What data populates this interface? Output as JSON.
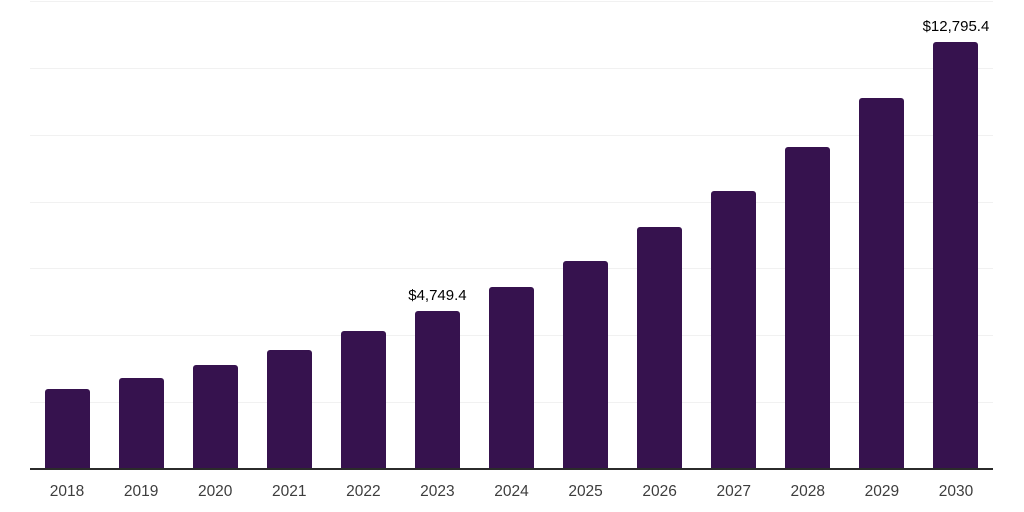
{
  "chart_data": {
    "type": "bar",
    "title": "",
    "xlabel": "",
    "ylabel": "",
    "categories": [
      "2018",
      "2019",
      "2020",
      "2021",
      "2022",
      "2023",
      "2024",
      "2025",
      "2026",
      "2027",
      "2028",
      "2029",
      "2030"
    ],
    "values": [
      2420,
      2750,
      3140,
      3590,
      4160,
      4749.4,
      5470,
      6250,
      7270,
      8350,
      9660,
      11130,
      12795.4
    ],
    "data_labels": {
      "2023": "$4,749.4",
      "2030": "$12,795.4"
    },
    "ylim": [
      0,
      14000
    ],
    "gridline_interval": 2000,
    "grid": true,
    "legend": "none",
    "colors": {
      "bar": "#36124E",
      "axis": "#2b2b2b",
      "gridline": "#f1f1f1",
      "value_label": "#000000",
      "tick_label": "#3d3d3d",
      "background": "#ffffff"
    }
  }
}
